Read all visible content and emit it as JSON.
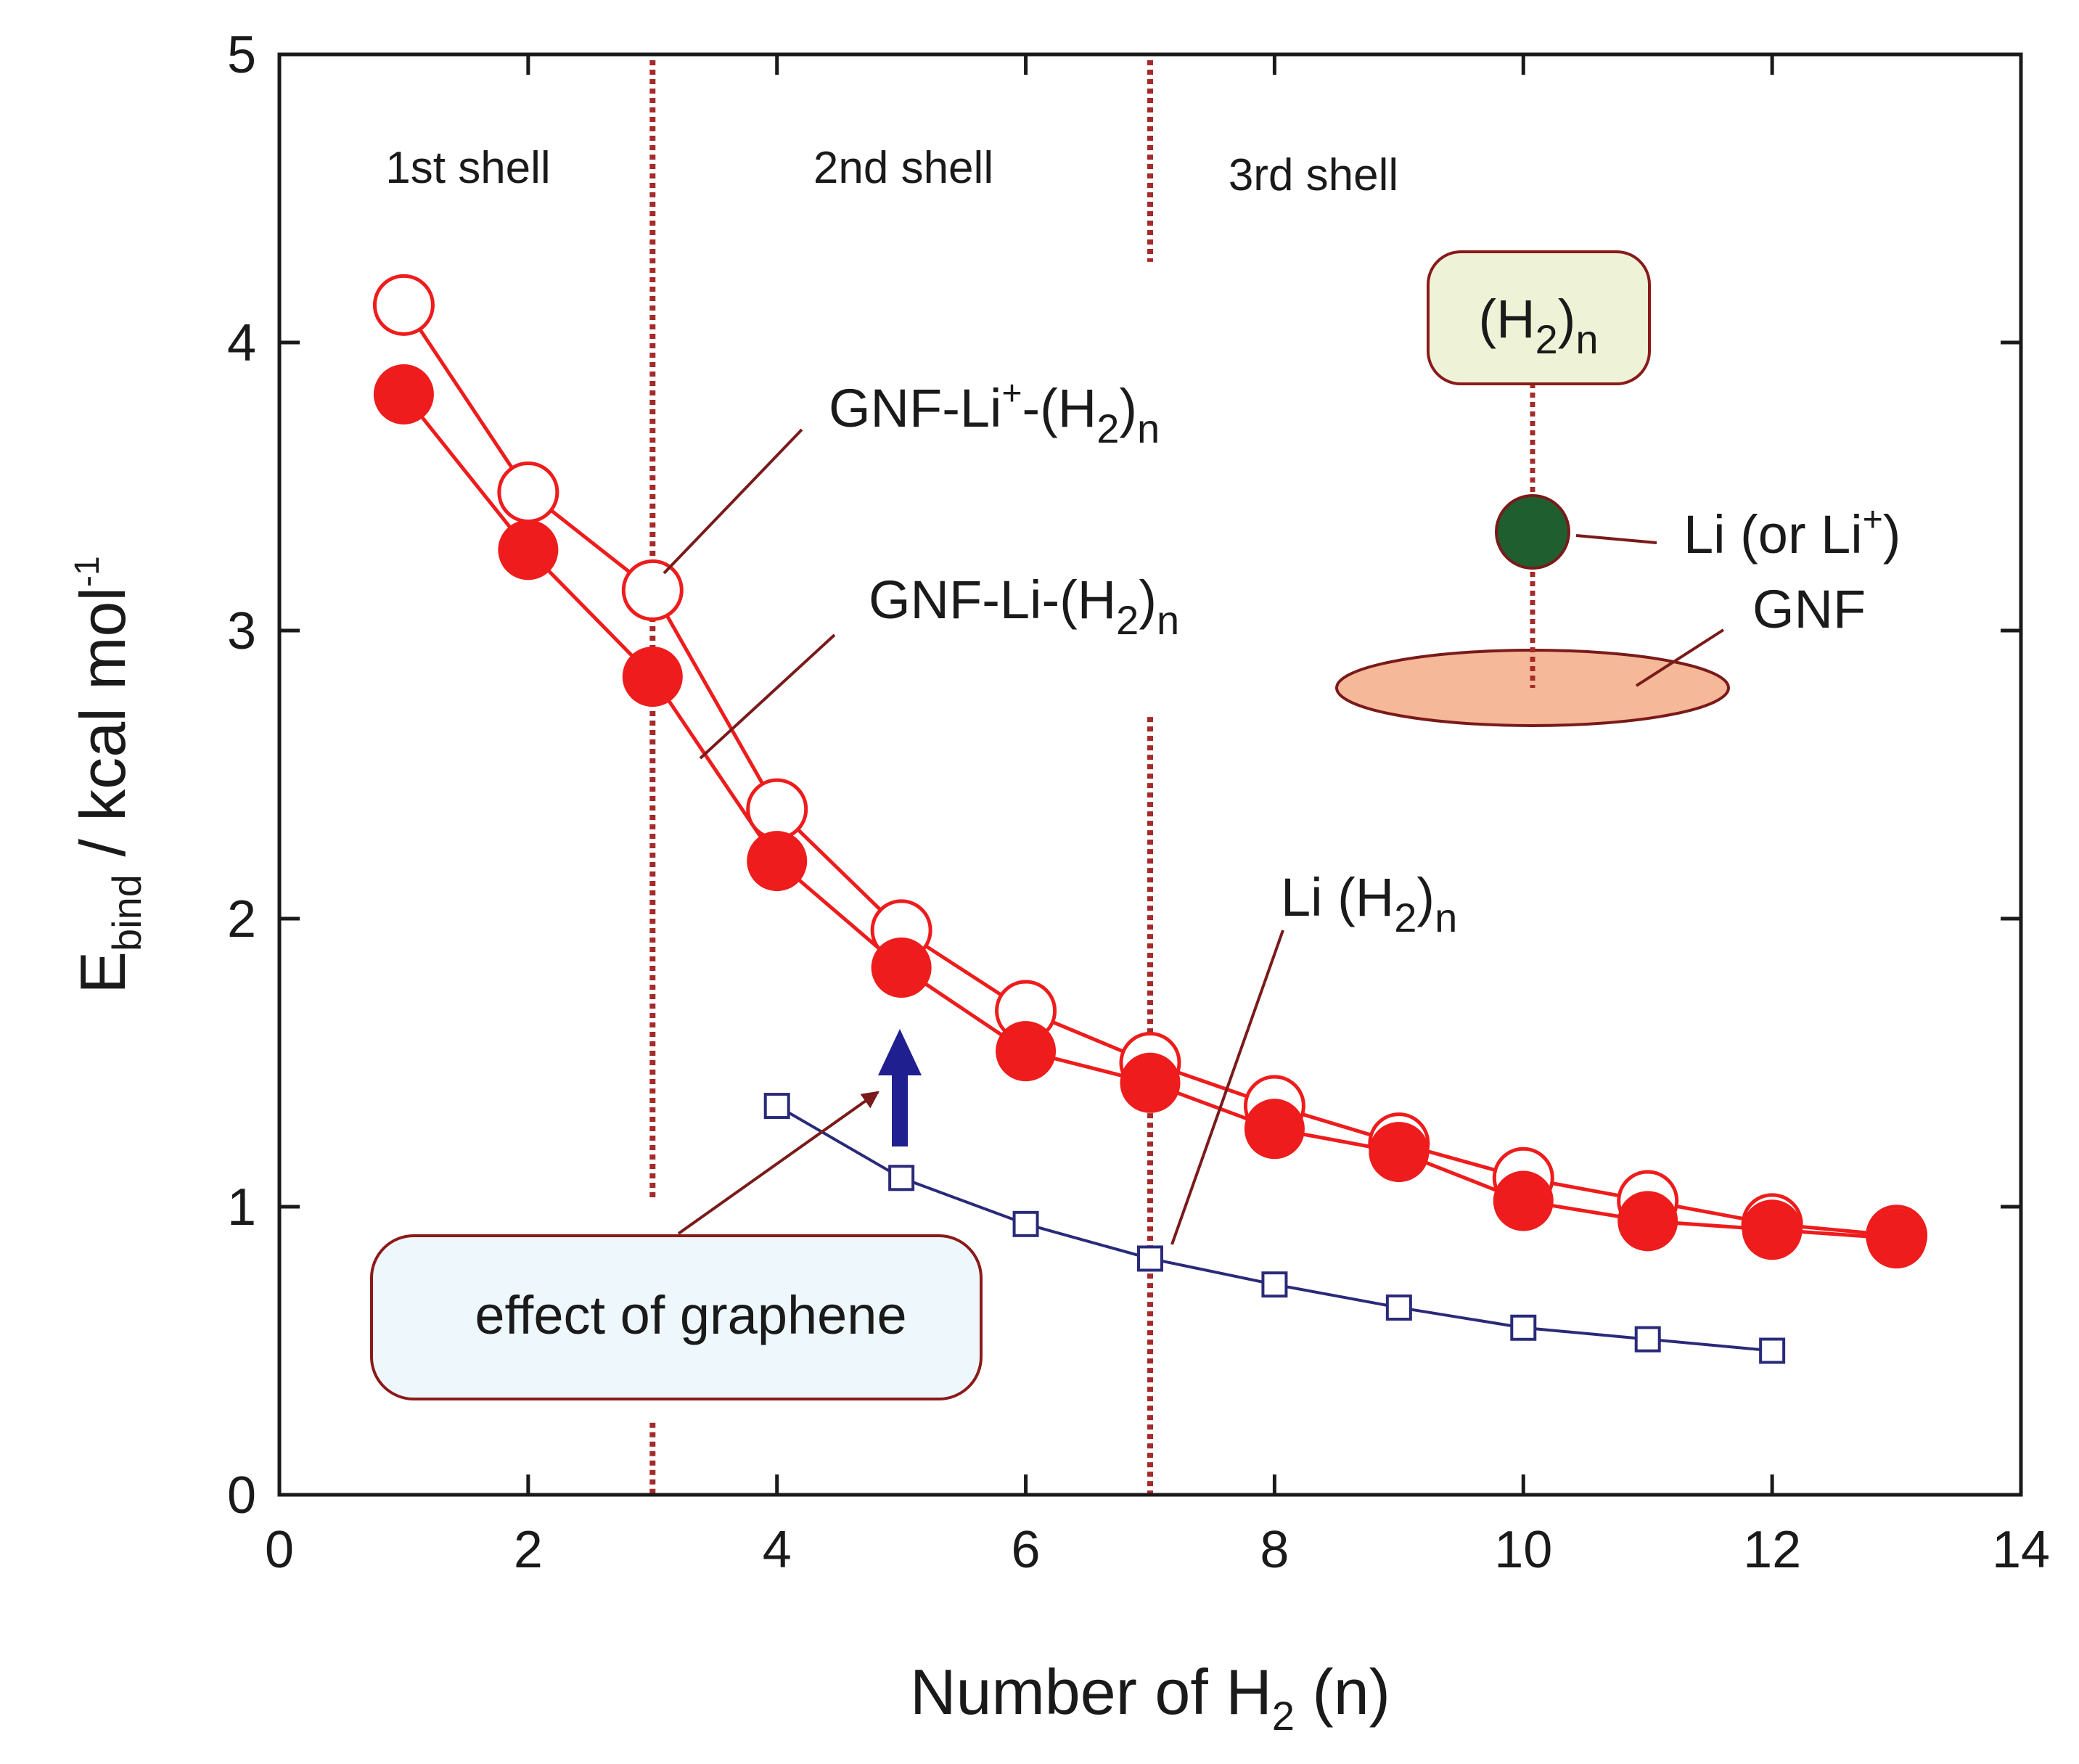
{
  "chart_data": {
    "type": "line",
    "xlabel": "Number of H",
    "xlabel_sub": "2",
    "xlabel_suffix": " (n)",
    "ylabel": "E",
    "ylabel_sub": "bind",
    "ylabel_mid": " / kcal mol",
    "ylabel_sup": "-1",
    "xlim": [
      0,
      14
    ],
    "ylim": [
      0,
      5
    ],
    "xticks": [
      0,
      2,
      4,
      6,
      8,
      10,
      12,
      14
    ],
    "yticks": [
      0,
      1,
      2,
      3,
      4,
      5
    ],
    "grid": false,
    "series": [
      {
        "name": "GNF-Li+-(H2)n",
        "marker": "open-circle",
        "color": "#ee1c1c",
        "x": [
          1,
          2,
          3,
          4,
          5,
          6,
          7,
          8,
          9,
          10,
          11,
          12,
          13
        ],
        "values": [
          4.13,
          3.48,
          3.14,
          2.38,
          1.96,
          1.68,
          1.5,
          1.35,
          1.22,
          1.1,
          1.02,
          0.94,
          0.9
        ]
      },
      {
        "name": "GNF-Li-(H2)n",
        "marker": "filled-circle",
        "color": "#ee1c1c",
        "x": [
          1,
          2,
          3,
          4,
          5,
          6,
          7,
          8,
          9,
          10,
          11,
          12,
          13
        ],
        "values": [
          3.82,
          3.28,
          2.84,
          2.2,
          1.83,
          1.54,
          1.43,
          1.27,
          1.19,
          1.02,
          0.95,
          0.92,
          0.89
        ]
      },
      {
        "name": "Li (H2)n",
        "marker": "open-square",
        "color": "#2a2a7a",
        "x": [
          4,
          5,
          6,
          7,
          8,
          9,
          10,
          11,
          12
        ],
        "values": [
          1.35,
          1.1,
          0.94,
          0.82,
          0.73,
          0.65,
          0.58,
          0.54,
          0.5
        ]
      }
    ],
    "shell_dividers": [
      3,
      7
    ],
    "annotations": {
      "shell_1": "1st shell",
      "shell_2": "2nd shell",
      "shell_3": "3rd shell",
      "gnf_li_plus_prefix": "GNF-Li",
      "gnf_li_plus_sup": "+",
      "gnf_li_plus_mid": "-(H",
      "gnf_li_plus_sub2": "2",
      "gnf_li_plus_close": ")",
      "gnf_li_plus_subn": "n",
      "gnf_li_prefix": "GNF-Li-(H",
      "gnf_li_sub2": "2",
      "gnf_li_close": ")",
      "gnf_li_subn": "n",
      "li_h2_prefix": "Li (H",
      "li_h2_sub2": "2",
      "li_h2_close": ")",
      "li_h2_subn": "n",
      "effect_box": "effect of graphene",
      "inset_h2_open": "(H",
      "inset_h2_sub2": "2",
      "inset_h2_close": ")",
      "inset_h2_subn": "n",
      "inset_li_prefix": "Li (or Li",
      "inset_li_sup": "+",
      "inset_li_close": ")",
      "inset_gnf": "GNF"
    },
    "colors": {
      "red": "#ee1c1c",
      "navy": "#2a2a7a",
      "arrow": "#1f1f8f",
      "divider": "#a52a2a",
      "leader": "#7a1a1a",
      "box_border": "#8b1a1a",
      "box_fill": "#eef7fb",
      "inset_box_fill": "#eef3d8",
      "li_atom": "#1f5f2f",
      "gnf_fill": "#f5b899"
    }
  }
}
